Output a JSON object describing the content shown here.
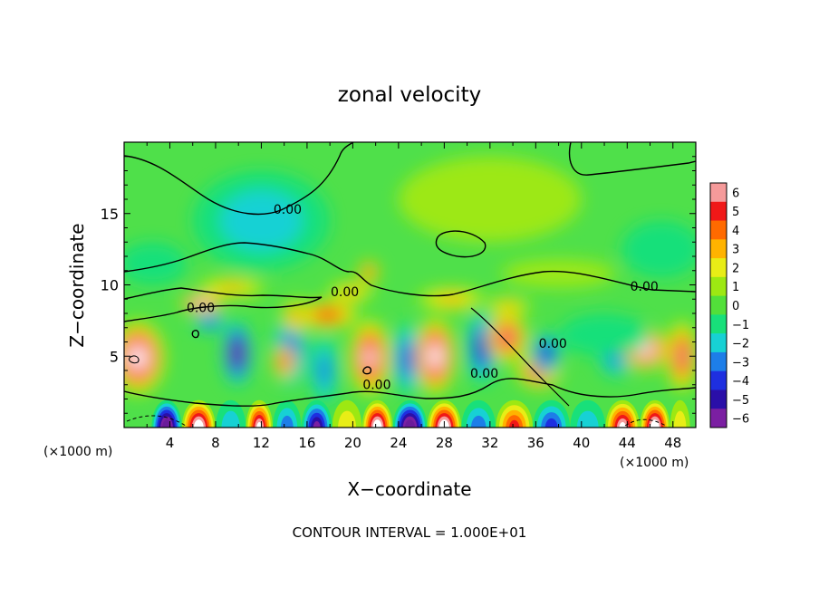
{
  "chart_data": {
    "type": "heatmap",
    "title": "zonal velocity",
    "xlabel": "X−coordinate",
    "ylabel": "Z−coordinate",
    "x_unit_left": "(×1000 m)",
    "x_unit_right": "(×1000 m)",
    "footer": "CONTOUR INTERVAL = 1.000E+01",
    "xlim": [
      0,
      50
    ],
    "ylim": [
      0,
      20
    ],
    "x_ticks": [
      4,
      8,
      12,
      16,
      20,
      24,
      28,
      32,
      36,
      40,
      44,
      48
    ],
    "y_ticks": [
      5,
      10,
      15
    ],
    "colorbar": {
      "values": [
        6,
        5,
        4,
        3,
        2,
        1,
        0,
        -1,
        -2,
        -3,
        -4,
        -5,
        -6
      ],
      "labels": [
        "6",
        "5",
        "4",
        "3",
        "2",
        "1",
        "0",
        "−1",
        "−2",
        "−3",
        "−4",
        "−5",
        "−6"
      ]
    },
    "contour_labels": [
      {
        "text": "0.00",
        "x": 14.3,
        "z": 15.0
      },
      {
        "text": "0.00",
        "x": 45.5,
        "z": 9.6
      },
      {
        "text": "0.00",
        "x": 6.7,
        "z": 8.1
      },
      {
        "text": "0.00",
        "x": 19.3,
        "z": 9.2
      },
      {
        "text": "0.00",
        "x": 37.5,
        "z": 5.6
      },
      {
        "text": "0.00",
        "x": 31.5,
        "z": 3.5
      },
      {
        "text": "0.00",
        "x": 22.1,
        "z": 2.7
      }
    ],
    "features": [
      {
        "x": 1.2,
        "z": 4.9,
        "u": 8,
        "rx": 2.4,
        "rz": 2.6
      },
      {
        "x": 6.8,
        "z": 8.7,
        "u": 8,
        "rx": 1.9,
        "rz": 0.7
      },
      {
        "x": 7.5,
        "z": 7.4,
        "u": -4,
        "rx": 1.5,
        "rz": 0.7
      },
      {
        "x": 9.4,
        "z": 9.8,
        "u": 3,
        "rx": 3.0,
        "rz": 0.7
      },
      {
        "x": 9.9,
        "z": 5.2,
        "u": -7,
        "rx": 1.3,
        "rz": 2.3
      },
      {
        "x": 14.5,
        "z": 5.3,
        "u": -4,
        "rx": 1.6,
        "rz": 2.6
      },
      {
        "x": 15.1,
        "z": 7.8,
        "u": 4,
        "rx": 1.3,
        "rz": 1.2
      },
      {
        "x": 14.0,
        "z": 4.6,
        "u": 6,
        "rx": 1.0,
        "rz": 1.2
      },
      {
        "x": 17.8,
        "z": 7.9,
        "u": 5,
        "rx": 2.7,
        "rz": 1.0
      },
      {
        "x": 19.8,
        "z": 9.5,
        "u": 3,
        "rx": 2.0,
        "rz": 0.7
      },
      {
        "x": 21.4,
        "z": 10.9,
        "u": 5,
        "rx": 0.9,
        "rz": 0.8
      },
      {
        "x": 21.5,
        "z": 4.9,
        "u": 7,
        "rx": 1.8,
        "rz": 2.7
      },
      {
        "x": 17.5,
        "z": 4.0,
        "u": -3,
        "rx": 1.2,
        "rz": 2.5
      },
      {
        "x": 24.8,
        "z": 4.8,
        "u": -4,
        "rx": 1.4,
        "rz": 2.6
      },
      {
        "x": 27.2,
        "z": 5.0,
        "u": 8,
        "rx": 1.8,
        "rz": 2.7
      },
      {
        "x": 28.6,
        "z": 9.0,
        "u": 3,
        "rx": 3.0,
        "rz": 0.8
      },
      {
        "x": 31.3,
        "z": 5.6,
        "u": -5,
        "rx": 1.4,
        "rz": 2.6
      },
      {
        "x": 33.5,
        "z": 6.3,
        "u": 6,
        "rx": 1.8,
        "rz": 1.8
      },
      {
        "x": 36.3,
        "z": 4.0,
        "u": 6,
        "rx": 2.0,
        "rz": 1.3
      },
      {
        "x": 33.6,
        "z": 8.5,
        "u": 3,
        "rx": 2.0,
        "rz": 0.6
      },
      {
        "x": 36.9,
        "z": 5.2,
        "u": -5,
        "rx": 1.3,
        "rz": 1.5
      },
      {
        "x": 43.0,
        "z": 5.3,
        "u": -4,
        "rx": 1.6,
        "rz": 1.8
      },
      {
        "x": 45.6,
        "z": 5.5,
        "u": 8,
        "rx": 2.0,
        "rz": 1.5
      },
      {
        "x": 48.8,
        "z": 5.0,
        "u": 6,
        "rx": 1.4,
        "rz": 2.5
      },
      {
        "x": 12.0,
        "z": 14.5,
        "u": -1.5,
        "rx": 6.0,
        "rz": 3.5
      },
      {
        "x": 32.0,
        "z": 16.0,
        "u": 1.3,
        "rx": 8.0,
        "rz": 3.0
      },
      {
        "x": 38.0,
        "z": 10.8,
        "u": 1.2,
        "rx": 5.0,
        "rz": 1.0
      },
      {
        "x": 47.0,
        "z": 12.5,
        "u": -1.3,
        "rx": 3.5,
        "rz": 2.0
      },
      {
        "x": 42.0,
        "z": 6.5,
        "u": -1.2,
        "rx": 4.0,
        "rz": 1.5
      },
      {
        "x": 2.5,
        "z": 11.5,
        "u": -1.0,
        "rx": 3.0,
        "rz": 1.5
      }
    ],
    "band_levels": [
      {
        "x": 1.2,
        "u": 0
      },
      {
        "x": 3.6,
        "u": -8
      },
      {
        "x": 6.5,
        "u": 8
      },
      {
        "x": 9.5,
        "u": -2
      },
      {
        "x": 11.8,
        "u": 7
      },
      {
        "x": 14.2,
        "u": -3
      },
      {
        "x": 16.8,
        "u": -6
      },
      {
        "x": 19.6,
        "u": 2
      },
      {
        "x": 22.0,
        "u": 8
      },
      {
        "x": 25.0,
        "u": -8
      },
      {
        "x": 28.0,
        "u": 8
      },
      {
        "x": 31.0,
        "u": -3
      },
      {
        "x": 34.0,
        "u": 5
      },
      {
        "x": 37.5,
        "u": -4
      },
      {
        "x": 40.5,
        "u": -2
      },
      {
        "x": 43.7,
        "u": 7
      },
      {
        "x": 46.5,
        "u": 8
      },
      {
        "x": 49.0,
        "u": 2
      }
    ]
  }
}
